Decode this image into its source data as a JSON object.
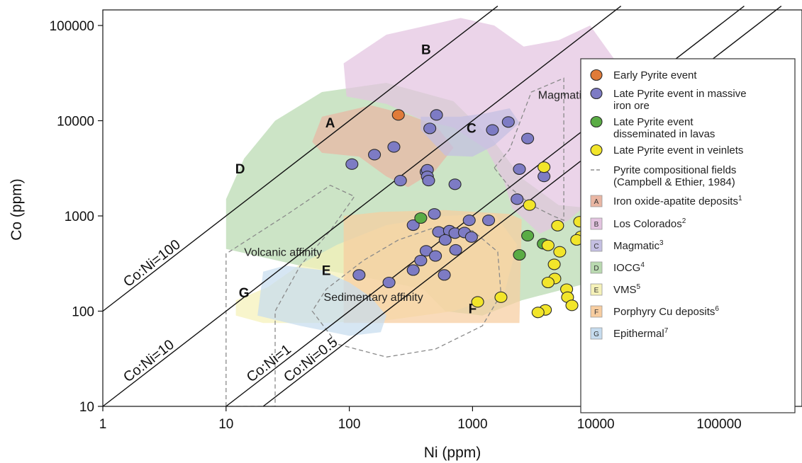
{
  "chart_data": {
    "type": "scatter",
    "xlabel": "Ni (ppm)",
    "ylabel": "Co (ppm)",
    "x_scale": "log",
    "y_scale": "log",
    "xlim": [
      1,
      550000
    ],
    "ylim": [
      10,
      160000
    ],
    "x_ticks": [
      1,
      10,
      100,
      1000,
      10000,
      100000
    ],
    "x_tick_labels": [
      "1",
      "10",
      "100",
      "1000",
      "10000",
      "100000"
    ],
    "y_ticks": [
      10,
      100,
      1000,
      10000,
      100000
    ],
    "y_tick_labels": [
      "10",
      "100",
      "1000",
      "10000",
      "100000"
    ],
    "grid": false,
    "legend_position": "right",
    "ratio_lines": [
      {
        "label": "Co:Ni=100",
        "ratio": 100
      },
      {
        "label": "Co:Ni=10",
        "ratio": 10
      },
      {
        "label": "Co:Ni=1",
        "ratio": 1
      },
      {
        "label": "Co:Ni=0.5",
        "ratio": 0.5
      }
    ],
    "fields": [
      {
        "letter": "D",
        "label": "IOCG",
        "sup": "4",
        "color": "#b9d9b0",
        "polygon": [
          [
            10,
            450
          ],
          [
            10,
            1500
          ],
          [
            14,
            4000
          ],
          [
            25,
            10000
          ],
          [
            60,
            20000
          ],
          [
            200,
            25000
          ],
          [
            700,
            16000
          ],
          [
            1500,
            6000
          ],
          [
            2500,
            2500
          ],
          [
            5000,
            1300
          ],
          [
            20000,
            1100
          ],
          [
            18000,
            350
          ],
          [
            9000,
            200
          ],
          [
            2500,
            130
          ],
          [
            1200,
            90
          ],
          [
            600,
            100
          ],
          [
            400,
            170
          ],
          [
            150,
            220
          ],
          [
            40,
            300
          ]
        ],
        "letter_at": [
          13,
          2800
        ]
      },
      {
        "letter": "B",
        "label": "Los Colorados",
        "sup": "2",
        "color": "#e3c4e0",
        "polygon": [
          [
            90,
            40000
          ],
          [
            200,
            80000
          ],
          [
            800,
            120000
          ],
          [
            1500,
            100000
          ],
          [
            2600,
            60000
          ],
          [
            5000,
            70000
          ],
          [
            9000,
            100000
          ],
          [
            14000,
            45000
          ],
          [
            20000,
            9000
          ],
          [
            15000,
            3500
          ],
          [
            10000,
            1600
          ],
          [
            6000,
            900
          ],
          [
            3500,
            650
          ],
          [
            2100,
            1200
          ],
          [
            1800,
            2300
          ],
          [
            1300,
            5000
          ],
          [
            700,
            8500
          ],
          [
            400,
            10000
          ],
          [
            200,
            15000
          ],
          [
            95,
            18000
          ]
        ],
        "letter_at": [
          420,
          50000
        ]
      },
      {
        "letter": "A",
        "label": "Iron oxide-apatite deposits",
        "sup": "1",
        "color": "#e9b6a3",
        "polygon": [
          [
            50,
            6000
          ],
          [
            60,
            11000
          ],
          [
            150,
            14500
          ],
          [
            300,
            11500
          ],
          [
            500,
            9000
          ],
          [
            700,
            5200
          ],
          [
            500,
            3000
          ],
          [
            300,
            2000
          ],
          [
            200,
            2600
          ],
          [
            120,
            4200
          ],
          [
            60,
            4600
          ]
        ],
        "letter_at": [
          70,
          8500
        ]
      },
      {
        "letter": "C",
        "label": "Magmatic",
        "sup": "3",
        "color": "#c4bfe2",
        "polygon": [
          [
            380,
            8000
          ],
          [
            380,
            11000
          ],
          [
            800,
            11000
          ],
          [
            1300,
            12000
          ],
          [
            2000,
            13500
          ],
          [
            2400,
            9500
          ],
          [
            1500,
            5500
          ],
          [
            1000,
            4200
          ],
          [
            600,
            4300
          ]
        ],
        "letter_at": [
          980,
          7500
        ]
      },
      {
        "letter": "E",
        "label": "VMS",
        "sup": "5",
        "color": "#f5f1b8",
        "polygon": [
          [
            12,
            90
          ],
          [
            12,
            130
          ],
          [
            22,
            180
          ],
          [
            40,
            310
          ],
          [
            80,
            500
          ],
          [
            200,
            800
          ],
          [
            600,
            1000
          ],
          [
            1500,
            1050
          ],
          [
            2300,
            500
          ],
          [
            1800,
            150
          ],
          [
            700,
            100
          ],
          [
            200,
            80
          ],
          [
            60,
            75
          ],
          [
            20,
            75
          ]
        ],
        "letter_at": [
          65,
          240
        ]
      },
      {
        "letter": "F",
        "label": "Porphyry Cu deposits",
        "sup": "6",
        "color": "#f7cda0",
        "polygon": [
          [
            90,
            75
          ],
          [
            90,
            1000
          ],
          [
            180,
            1100
          ],
          [
            600,
            1150
          ],
          [
            2000,
            1050
          ],
          [
            2500,
            920
          ],
          [
            2500,
            900
          ],
          [
            2400,
            75
          ]
        ],
        "letter_at": [
          1000,
          95
        ]
      },
      {
        "letter": "G",
        "label": "Epithermal",
        "sup": "7",
        "color": "#c6dcef",
        "polygon": [
          [
            18,
            90
          ],
          [
            20,
            260
          ],
          [
            30,
            300
          ],
          [
            60,
            270
          ],
          [
            100,
            200
          ],
          [
            150,
            140
          ],
          [
            200,
            90
          ],
          [
            180,
            60
          ],
          [
            100,
            55
          ],
          [
            40,
            70
          ]
        ],
        "letter_at": [
          14,
          140
        ]
      }
    ],
    "compositional_fields": [
      {
        "label": "Magmatic segregation",
        "polygon": [
          [
            1500,
            3200
          ],
          [
            2000,
            5000
          ],
          [
            3000,
            20000
          ],
          [
            5500,
            28000
          ],
          [
            5500,
            900
          ],
          [
            4500,
            1000
          ],
          [
            3000,
            1300
          ],
          [
            2000,
            2000
          ]
        ],
        "label_at": [
          3400,
          17000
        ]
      },
      {
        "label": "Volcanic affinity",
        "polygon": [
          [
            10,
            10
          ],
          [
            10,
            400
          ],
          [
            30,
            1000
          ],
          [
            70,
            2100
          ],
          [
            110,
            1600
          ],
          [
            70,
            700
          ],
          [
            40,
            300
          ],
          [
            25,
            100
          ],
          [
            25,
            10
          ]
        ],
        "label_at": [
          14,
          380
        ]
      },
      {
        "label": "Sedimentary affinity",
        "polygon": [
          [
            50,
            100
          ],
          [
            80,
            45
          ],
          [
            200,
            33
          ],
          [
            500,
            40
          ],
          [
            1200,
            70
          ],
          [
            1700,
            150
          ],
          [
            1600,
            420
          ],
          [
            1000,
            700
          ],
          [
            500,
            760
          ],
          [
            250,
            560
          ],
          [
            130,
            340
          ],
          [
            65,
            170
          ]
        ],
        "label_at": [
          62,
          128
        ]
      }
    ],
    "series": [
      {
        "name": "Early Pyrite event",
        "color": "#e07b39",
        "points": [
          [
            250,
            11500
          ]
        ]
      },
      {
        "name": "Late Pyrite event in massive iron ore",
        "color": "#7d7bc4",
        "points": [
          [
            105,
            3500
          ],
          [
            160,
            4400
          ],
          [
            230,
            5300
          ],
          [
            260,
            2350
          ],
          [
            420,
            2900
          ],
          [
            430,
            3050
          ],
          [
            430,
            2600
          ],
          [
            440,
            2350
          ],
          [
            450,
            8300
          ],
          [
            510,
            11500
          ],
          [
            720,
            2150
          ],
          [
            1450,
            8000
          ],
          [
            1950,
            9700
          ],
          [
            2800,
            6500
          ],
          [
            2400,
            3100
          ],
          [
            3800,
            2600
          ],
          [
            2300,
            1500
          ],
          [
            490,
            1050
          ],
          [
            330,
            800
          ],
          [
            940,
            900
          ],
          [
            1350,
            900
          ],
          [
            530,
            680
          ],
          [
            650,
            700
          ],
          [
            720,
            660
          ],
          [
            860,
            670
          ],
          [
            980,
            600
          ],
          [
            600,
            560
          ],
          [
            730,
            440
          ],
          [
            420,
            430
          ],
          [
            500,
            380
          ],
          [
            380,
            340
          ],
          [
            330,
            270
          ],
          [
            590,
            240
          ],
          [
            120,
            240
          ],
          [
            210,
            200
          ]
        ]
      },
      {
        "name": "Late Pyrite event disseminated in lavas",
        "color": "#5aac45",
        "points": [
          [
            380,
            950
          ],
          [
            2800,
            620
          ],
          [
            3750,
            510
          ],
          [
            2400,
            390
          ]
        ]
      },
      {
        "name": "Late Pyrite event in veinlets",
        "color": "#f2e52a",
        "points": [
          [
            3800,
            3250
          ],
          [
            2900,
            1300
          ],
          [
            4900,
            790
          ],
          [
            7400,
            870
          ],
          [
            7600,
            610
          ],
          [
            7000,
            560
          ],
          [
            4100,
            490
          ],
          [
            5100,
            420
          ],
          [
            4600,
            310
          ],
          [
            4650,
            220
          ],
          [
            4100,
            200
          ],
          [
            5800,
            170
          ],
          [
            5900,
            140
          ],
          [
            6400,
            115
          ],
          [
            3900,
            103
          ],
          [
            3400,
            97
          ],
          [
            1700,
            140
          ],
          [
            1100,
            125
          ]
        ]
      }
    ],
    "legend": {
      "items": [
        {
          "kind": "marker",
          "color": "#e07b39",
          "lines": [
            "Early Pyrite event"
          ],
          "sup": ""
        },
        {
          "kind": "marker",
          "color": "#7d7bc4",
          "lines": [
            "Late Pyrite event in massive",
            "iron ore"
          ],
          "sup": ""
        },
        {
          "kind": "marker",
          "color": "#5aac45",
          "lines": [
            "Late Pyrite event",
            "disseminated in lavas"
          ],
          "sup": ""
        },
        {
          "kind": "marker",
          "color": "#f2e52a",
          "lines": [
            "Late Pyrite event in veinlets"
          ],
          "sup": ""
        },
        {
          "kind": "dash",
          "color": "#777777",
          "lines": [
            "Pyrite compositional fields",
            "(Campbell & Ethier, 1984)"
          ],
          "sup": ""
        },
        {
          "kind": "box",
          "letter": "A",
          "color": "#e9b6a3",
          "lines": [
            "Iron oxide-apatite deposits"
          ],
          "sup": "1"
        },
        {
          "kind": "box",
          "letter": "B",
          "color": "#e3c4e0",
          "lines": [
            "Los Colorados"
          ],
          "sup": "2"
        },
        {
          "kind": "box",
          "letter": "C",
          "color": "#c4bfe2",
          "lines": [
            "Magmatic"
          ],
          "sup": "3"
        },
        {
          "kind": "box",
          "letter": "D",
          "color": "#b9d9b0",
          "lines": [
            "IOCG"
          ],
          "sup": "4"
        },
        {
          "kind": "box",
          "letter": "E",
          "color": "#f5f1b8",
          "lines": [
            "VMS"
          ],
          "sup": "5"
        },
        {
          "kind": "box",
          "letter": "F",
          "color": "#f7cda0",
          "lines": [
            "Porphyry Cu deposits"
          ],
          "sup": "6"
        },
        {
          "kind": "box",
          "letter": "G",
          "color": "#c6dcef",
          "lines": [
            "Epithermal"
          ],
          "sup": "7"
        }
      ]
    }
  }
}
